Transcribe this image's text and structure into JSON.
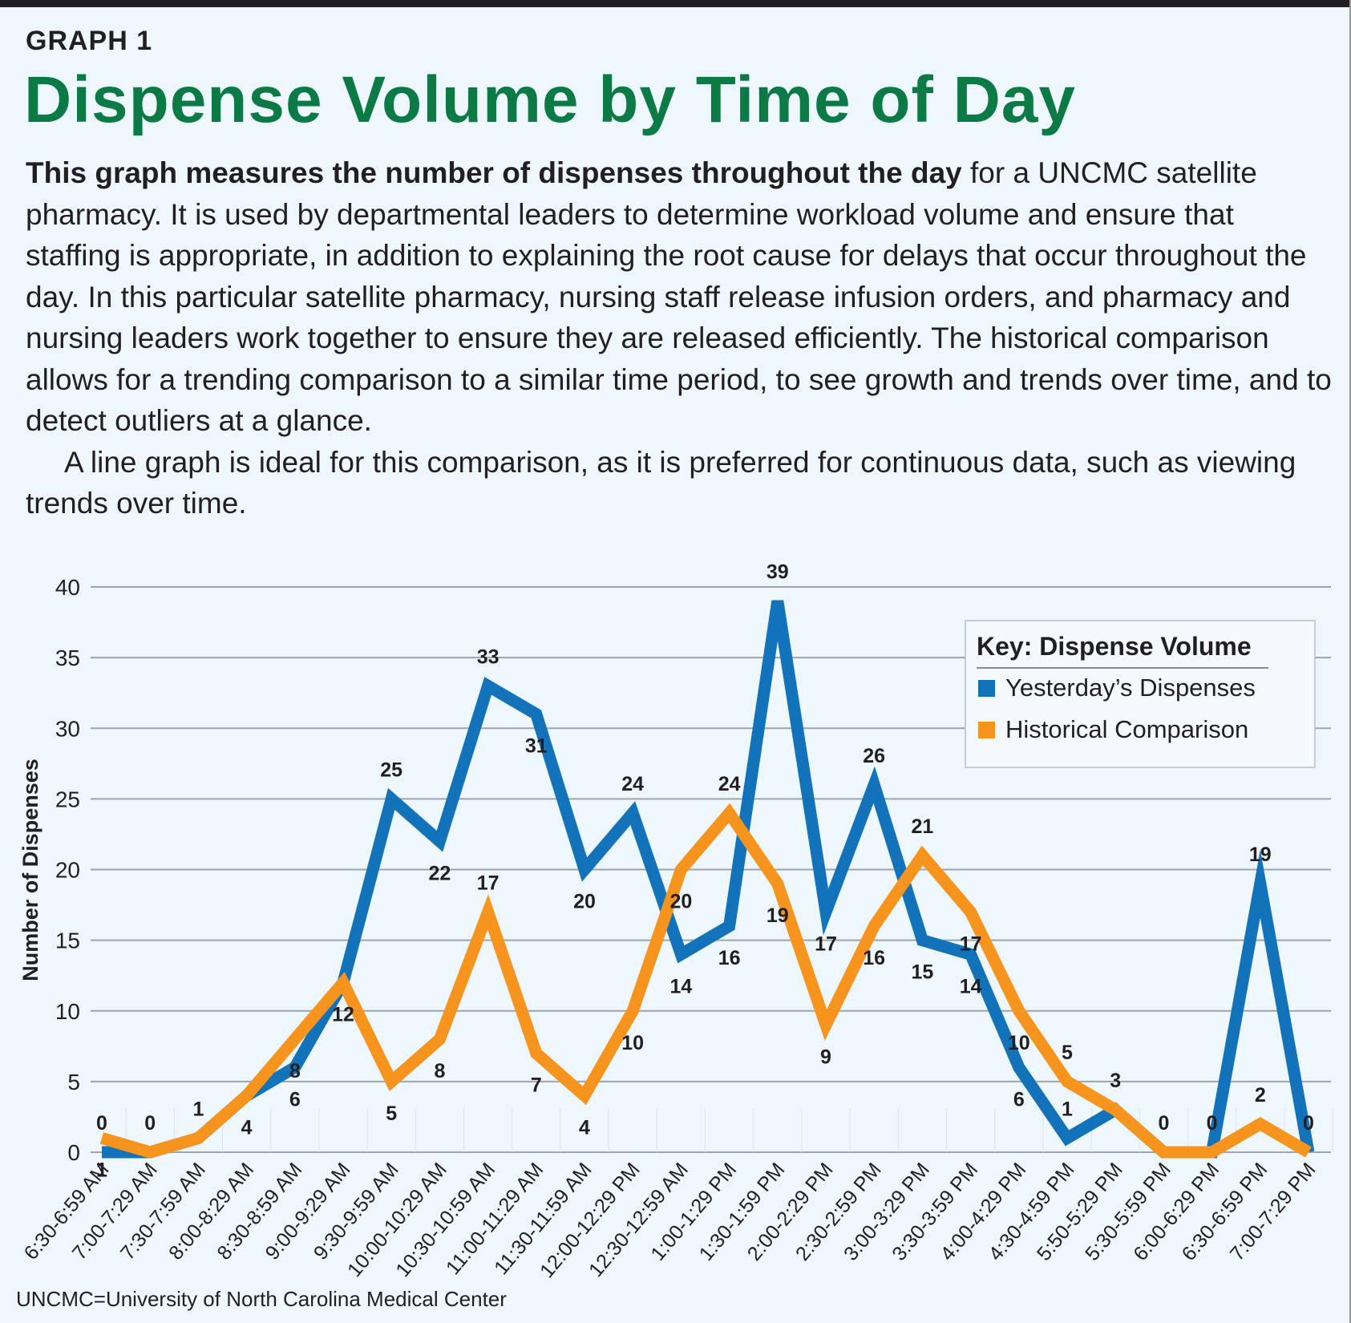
{
  "label": "GRAPH 1",
  "title": "Dispense Volume by Time of Day",
  "description": {
    "lead_bold": "This graph measures the number of dispenses throughout the day",
    "lead_rest": " for a UNCMC satellite pharmacy. It is used by departmental leaders to determine workload volume and ensure that staffing is appropriate, in addition to explaining the root cause for delays that occur throughout the day. In this particular satellite pharmacy, nursing staff release infusion orders, and pharmacy and nursing leaders work together to ensure they are released efficiently. The historical comparison allows for a trending comparison to a similar time period, to see growth and trends over time, and to detect outliers at a glance.",
    "paragraph2": "A line graph is ideal for this comparison, as it is preferred for continuous data, such as viewing trends over time."
  },
  "footnote": "UNCMC=University of North Carolina Medical Center",
  "chart_data": {
    "type": "line",
    "ylabel": "Number of Dispenses",
    "ylim": [
      0,
      40
    ],
    "yticks": [
      0,
      5,
      10,
      15,
      20,
      25,
      30,
      35,
      40
    ],
    "grid": true,
    "legend_title": "Key: Dispense Volume",
    "legend_position": "top-right",
    "categories": [
      "6:30-6:59 AM",
      "7:00-7:29 AM",
      "7:30-7:59 AM",
      "8:00-8:29 AM",
      "8:30-8:59 AM",
      "9:00-9:29 AM",
      "9:30-9:59 AM",
      "10:00-10:29 AM",
      "10:30-10:59 AM",
      "11:00-11:29 AM",
      "11:30-11:59 AM",
      "12:00-12:29 PM",
      "12:30-12:59 AM",
      "1:00-1:29 PM",
      "1:30-1:59 PM",
      "2:00-2:29 PM",
      "2:30-2:59 PM",
      "3:00-3:29 PM",
      "3:30-3:59 PM",
      "4:00-4:29 PM",
      "4:30-4:59 PM",
      "5:50-5:29 PM",
      "5:30-5:59 PM",
      "6:00-6:29 PM",
      "6:30-6:59 PM",
      "7:00-7:29 PM"
    ],
    "series": [
      {
        "name": "Yesterday’s Dispenses",
        "color": "#1273ba",
        "values": [
          0,
          0,
          1,
          4,
          6,
          12,
          25,
          22,
          33,
          31,
          20,
          24,
          14,
          16,
          39,
          17,
          26,
          15,
          14,
          6,
          1,
          3,
          0,
          0,
          19,
          0
        ]
      },
      {
        "name": "Historical Comparison",
        "color": "#f7941d",
        "values": [
          1,
          0,
          1,
          4,
          8,
          12,
          5,
          8,
          17,
          7,
          4,
          10,
          20,
          24,
          19,
          9,
          16,
          21,
          17,
          10,
          5,
          3,
          0,
          0,
          2,
          0
        ]
      }
    ]
  }
}
